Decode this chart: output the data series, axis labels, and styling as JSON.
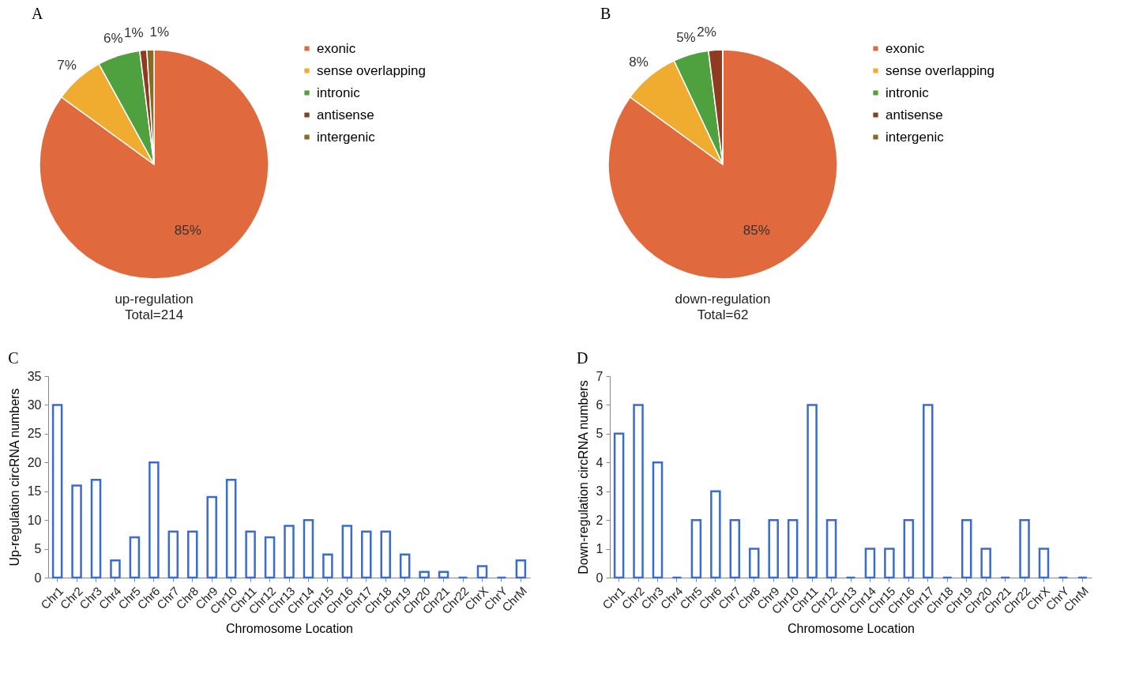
{
  "chart_data": [
    {
      "type": "pie",
      "title": "A",
      "annotations": [
        "up-regulation",
        "Total=214"
      ],
      "legend": "right",
      "categories": [
        "exonic",
        "sense overlapping",
        "intronic",
        "antisense",
        "intergenic"
      ],
      "values": [
        85,
        7,
        6,
        1,
        1
      ],
      "value_labels": [
        "85%",
        "7%",
        "6%",
        "1%",
        "1%"
      ],
      "colors": [
        "#e06a3d",
        "#f0ac2f",
        "#4fa03e",
        "#8e3b22",
        "#8a6a22"
      ]
    },
    {
      "type": "pie",
      "title": "B",
      "annotations": [
        "down-regulation",
        "Total=62"
      ],
      "legend": "right",
      "categories": [
        "exonic",
        "sense overlapping",
        "intronic",
        "antisense",
        "intergenic"
      ],
      "values": [
        85,
        8,
        5,
        2,
        0
      ],
      "value_labels": [
        "85%",
        "8%",
        "5%",
        "2%",
        null
      ],
      "colors": [
        "#e06a3d",
        "#f0ac2f",
        "#4fa03e",
        "#8e3b22",
        "#8a6a22"
      ]
    },
    {
      "type": "bar",
      "title": "C",
      "xlabel": "Chromosome Location",
      "ylabel": "Up-regulation circRNA numbers",
      "grid": false,
      "categories": [
        "Chr1",
        "Chr2",
        "Chr3",
        "Chr4",
        "Chr5",
        "Chr6",
        "Chr7",
        "Chr8",
        "Chr9",
        "Chr10",
        "Chr11",
        "Chr12",
        "Chr13",
        "Chr14",
        "Chr15",
        "Chr16",
        "Chr17",
        "Chr18",
        "Chr19",
        "Chr20",
        "Chr21",
        "Chr22",
        "ChrX",
        "ChrY",
        "ChrM"
      ],
      "values": [
        30,
        16,
        17,
        3,
        7,
        20,
        8,
        8,
        14,
        17,
        8,
        7,
        9,
        10,
        4,
        9,
        8,
        8,
        4,
        1,
        1,
        0,
        2,
        0,
        3
      ],
      "color": "#3a6ccf",
      "ylim": [
        0,
        35
      ],
      "yticks": [
        0,
        5,
        10,
        15,
        20,
        25,
        30,
        35
      ]
    },
    {
      "type": "bar",
      "title": "D",
      "xlabel": "Chromosome Location",
      "ylabel": "Down-regulation circRNA numbers",
      "grid": false,
      "categories": [
        "Chr1",
        "Chr2",
        "Chr3",
        "Chr4",
        "Chr5",
        "Chr6",
        "Chr7",
        "Chr8",
        "Chr9",
        "Chr10",
        "Chr11",
        "Chr12",
        "Chr13",
        "Chr14",
        "Chr15",
        "Chr16",
        "Chr17",
        "Chr18",
        "Chr19",
        "Chr20",
        "Chr21",
        "Chr22",
        "ChrX",
        "ChrY",
        "ChrM"
      ],
      "values": [
        5,
        6,
        4,
        0,
        2,
        3,
        2,
        1,
        2,
        2,
        6,
        2,
        0,
        1,
        1,
        2,
        6,
        0,
        2,
        1,
        0,
        2,
        1,
        0,
        0
      ],
      "color": "#3a6ccf",
      "ylim": [
        0,
        7
      ],
      "yticks": [
        0,
        1,
        2,
        3,
        4,
        5,
        6,
        7
      ]
    }
  ]
}
